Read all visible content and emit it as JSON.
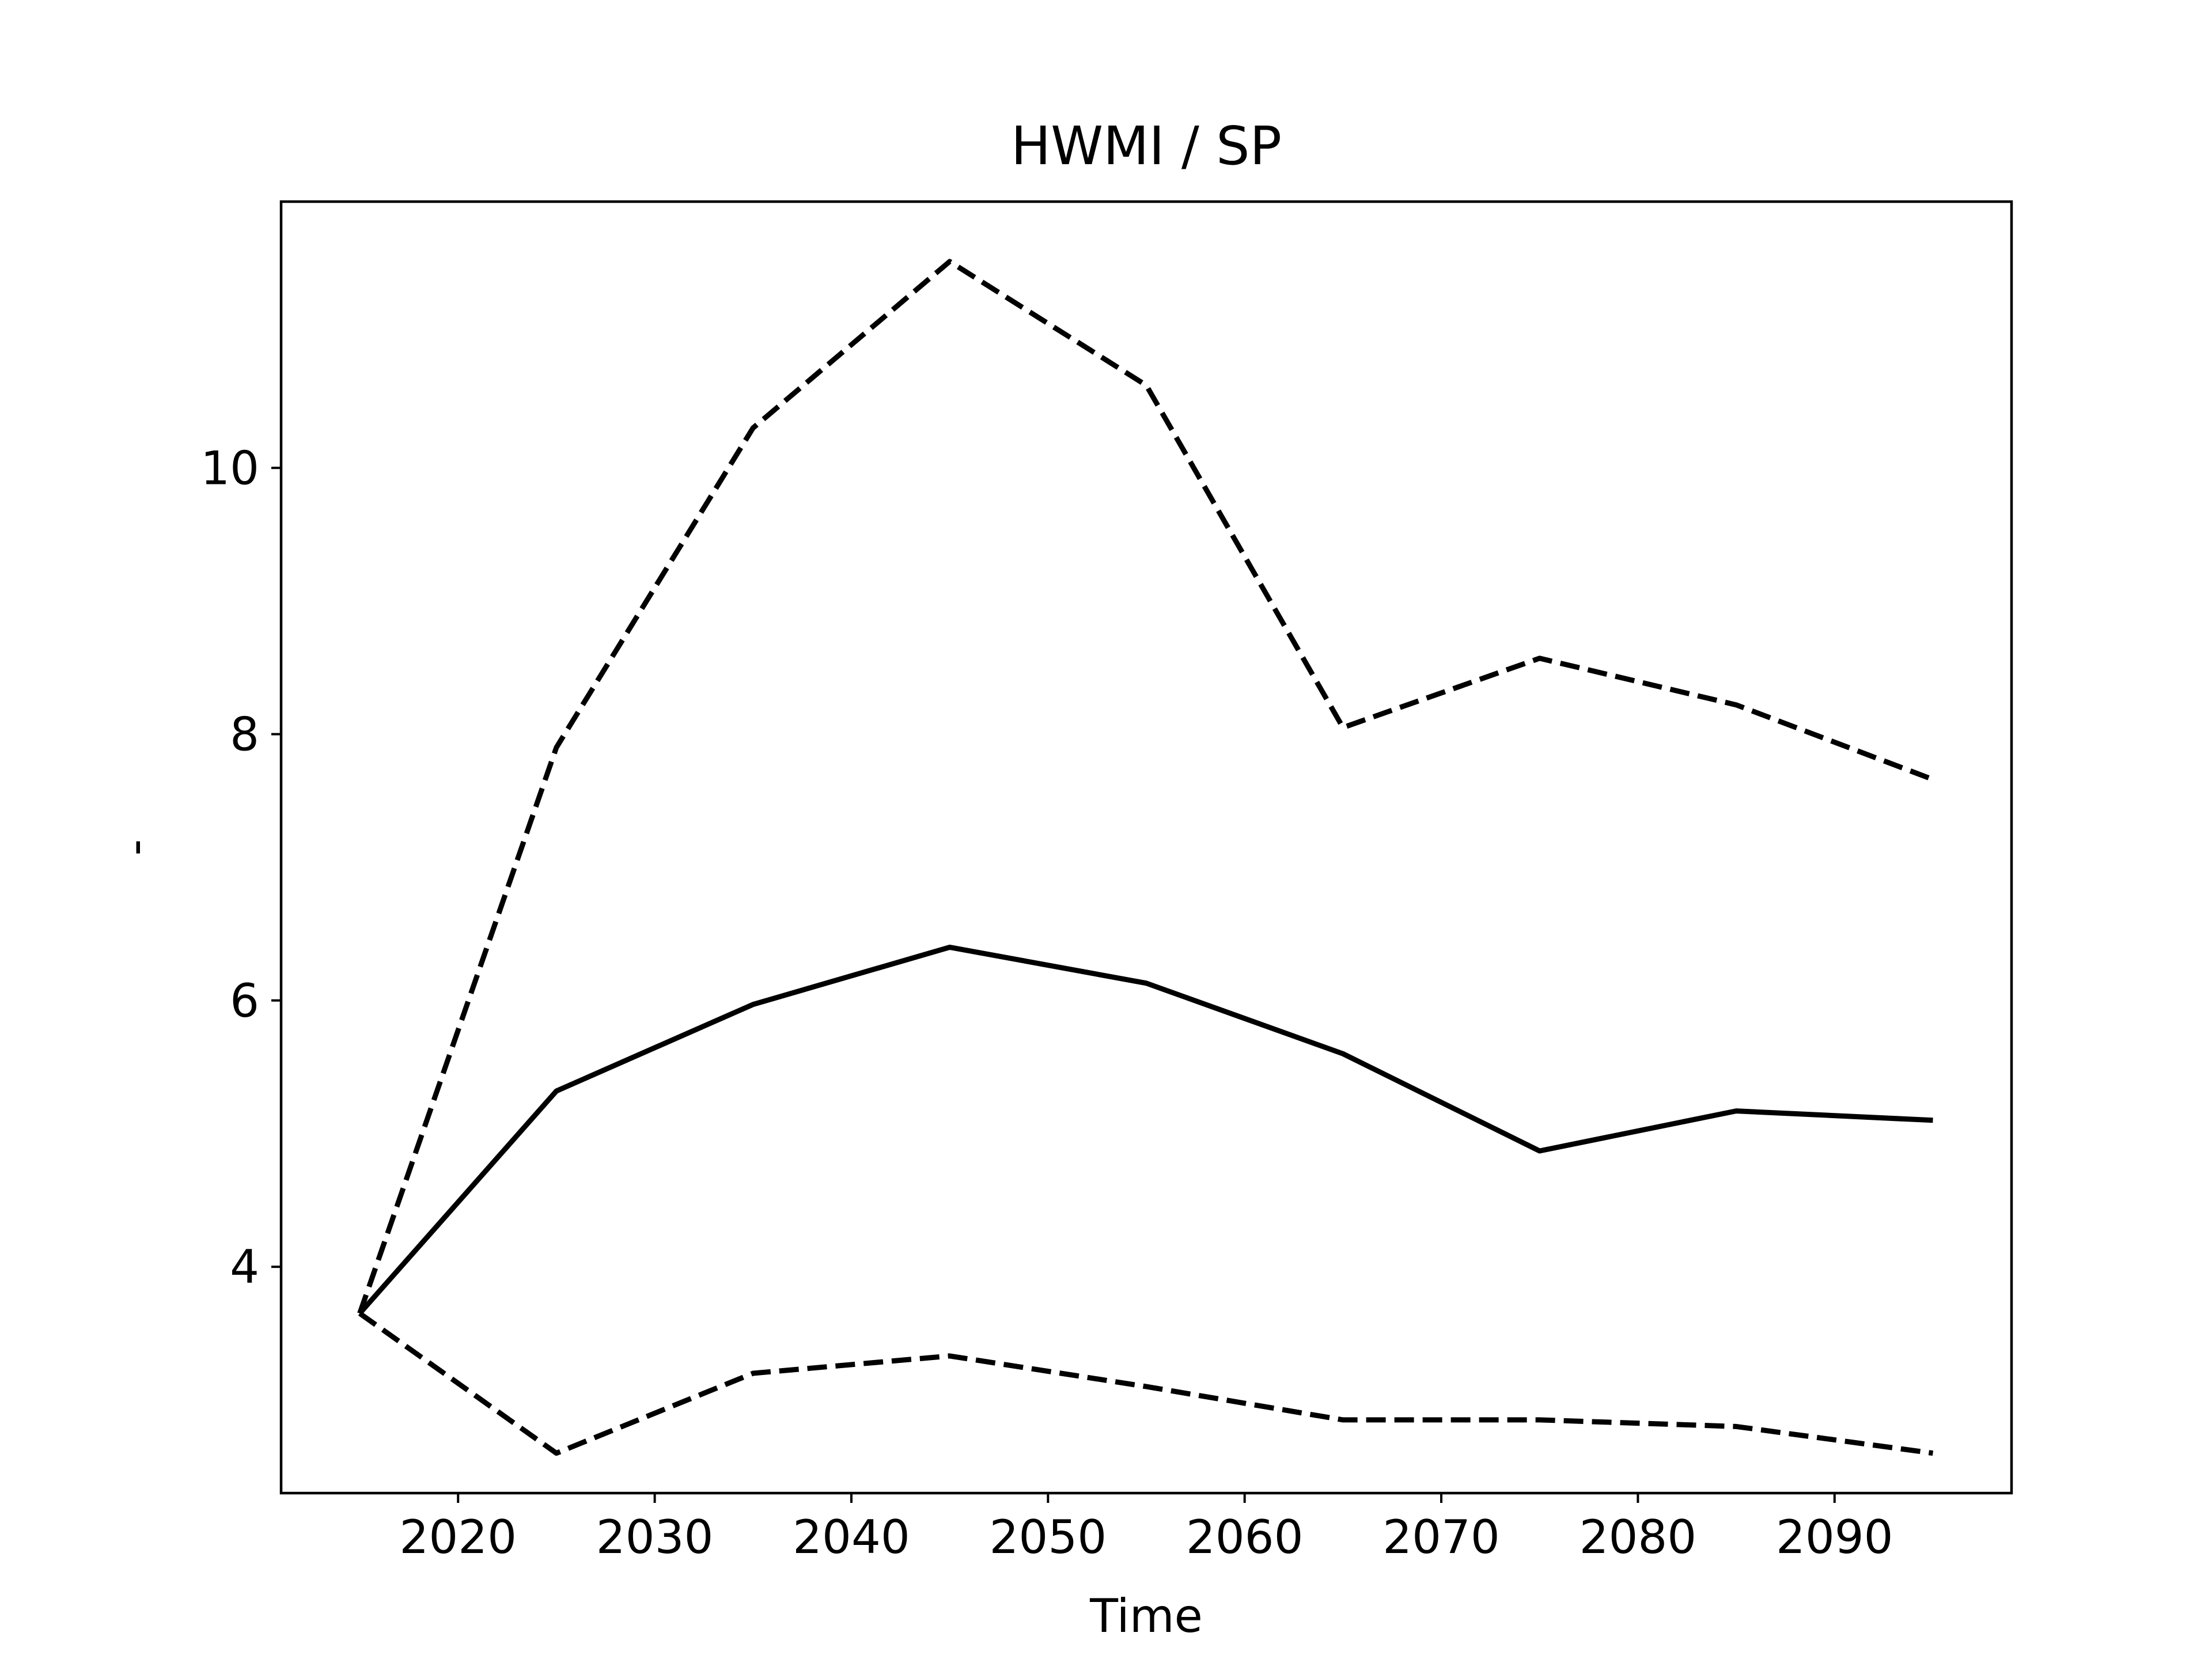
{
  "chart_data": {
    "type": "line",
    "title": "HWMI / SP",
    "xlabel": "Time",
    "ylabel": "-",
    "x": [
      2015,
      2025,
      2035,
      2045,
      2055,
      2065,
      2075,
      2085,
      2095
    ],
    "xlim": [
      2011,
      2099
    ],
    "ylim": [
      2.3,
      12.0
    ],
    "xticks": [
      2020,
      2030,
      2040,
      2050,
      2060,
      2070,
      2080,
      2090
    ],
    "yticks": [
      4,
      6,
      8,
      10
    ],
    "grid": false,
    "legend": false,
    "series": [
      {
        "style": "solid",
        "color": "#000000",
        "values": [
          3.65,
          5.32,
          5.97,
          6.4,
          6.13,
          5.6,
          4.87,
          5.17,
          5.1
        ]
      },
      {
        "style": "dashed",
        "color": "#000000",
        "values": [
          3.65,
          7.9,
          10.3,
          11.55,
          10.62,
          8.05,
          8.57,
          8.22,
          7.66
        ]
      },
      {
        "style": "dashed",
        "color": "#000000",
        "values": [
          3.65,
          2.6,
          3.2,
          3.33,
          3.1,
          2.85,
          2.85,
          2.8,
          2.6
        ]
      }
    ]
  }
}
